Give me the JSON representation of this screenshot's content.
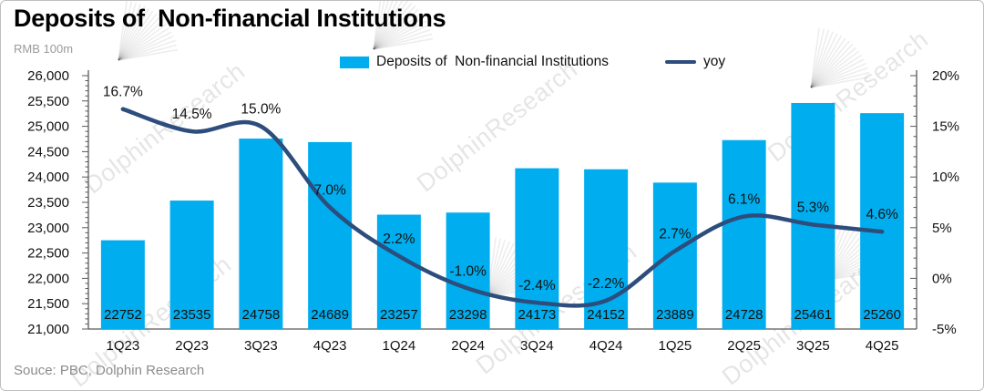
{
  "header": {
    "title": "Deposits of  Non-financial Institutions",
    "unit_label": "RMB 100m"
  },
  "legend": [
    {
      "label": "Deposits of  Non-financial Institutions",
      "type": "bar",
      "color": "#00aeef"
    },
    {
      "label": "yoy",
      "type": "line",
      "color": "#2d4d7d"
    }
  ],
  "watermark": {
    "text": "DolphinResearch"
  },
  "footer": {
    "source": "Souce: PBC, Dolphin Research"
  },
  "chart_data": {
    "type": "bar",
    "title": "Deposits of  Non-financial Institutions",
    "categories": [
      "1Q23",
      "2Q23",
      "3Q23",
      "4Q23",
      "1Q24",
      "2Q24",
      "3Q24",
      "4Q24",
      "1Q25",
      "2Q25",
      "3Q25",
      "4Q25"
    ],
    "series": [
      {
        "name": "Deposits of Non-financial Institutions",
        "type": "bar",
        "axis": "left",
        "color": "#00aeef",
        "values": [
          22752,
          23535,
          24758,
          24689,
          23257,
          23298,
          24173,
          24152,
          23889,
          24728,
          25461,
          25260
        ]
      },
      {
        "name": "yoy",
        "type": "line",
        "axis": "right",
        "color": "#2d4d7d",
        "values": [
          16.7,
          14.5,
          15.0,
          7.0,
          2.2,
          -1.0,
          -2.4,
          -2.2,
          2.7,
          6.1,
          5.3,
          4.6
        ],
        "labels": [
          "16.7%",
          "14.5%",
          "15.0%",
          "7.0%",
          "2.2%",
          "-1.0%",
          "-2.4%",
          "-2.2%",
          "2.7%",
          "6.1%",
          "5.3%",
          "4.6%"
        ]
      }
    ],
    "left_axis": {
      "label": "RMB 100m",
      "min": 21000,
      "max": 26000,
      "major_step": 500,
      "minor_step": 100,
      "tick_labels": [
        "26,000",
        "25,500",
        "25,000",
        "24,500",
        "24,000",
        "23,500",
        "23,000",
        "22,500",
        "22,000",
        "21,500",
        "21,000"
      ]
    },
    "right_axis": {
      "min": -5,
      "max": 20,
      "major_step": 5,
      "minor_step": 1,
      "tick_labels": [
        "20%",
        "15%",
        "10%",
        "5%",
        "0%",
        "-5%"
      ]
    },
    "grid": false,
    "legend_position": "top"
  }
}
